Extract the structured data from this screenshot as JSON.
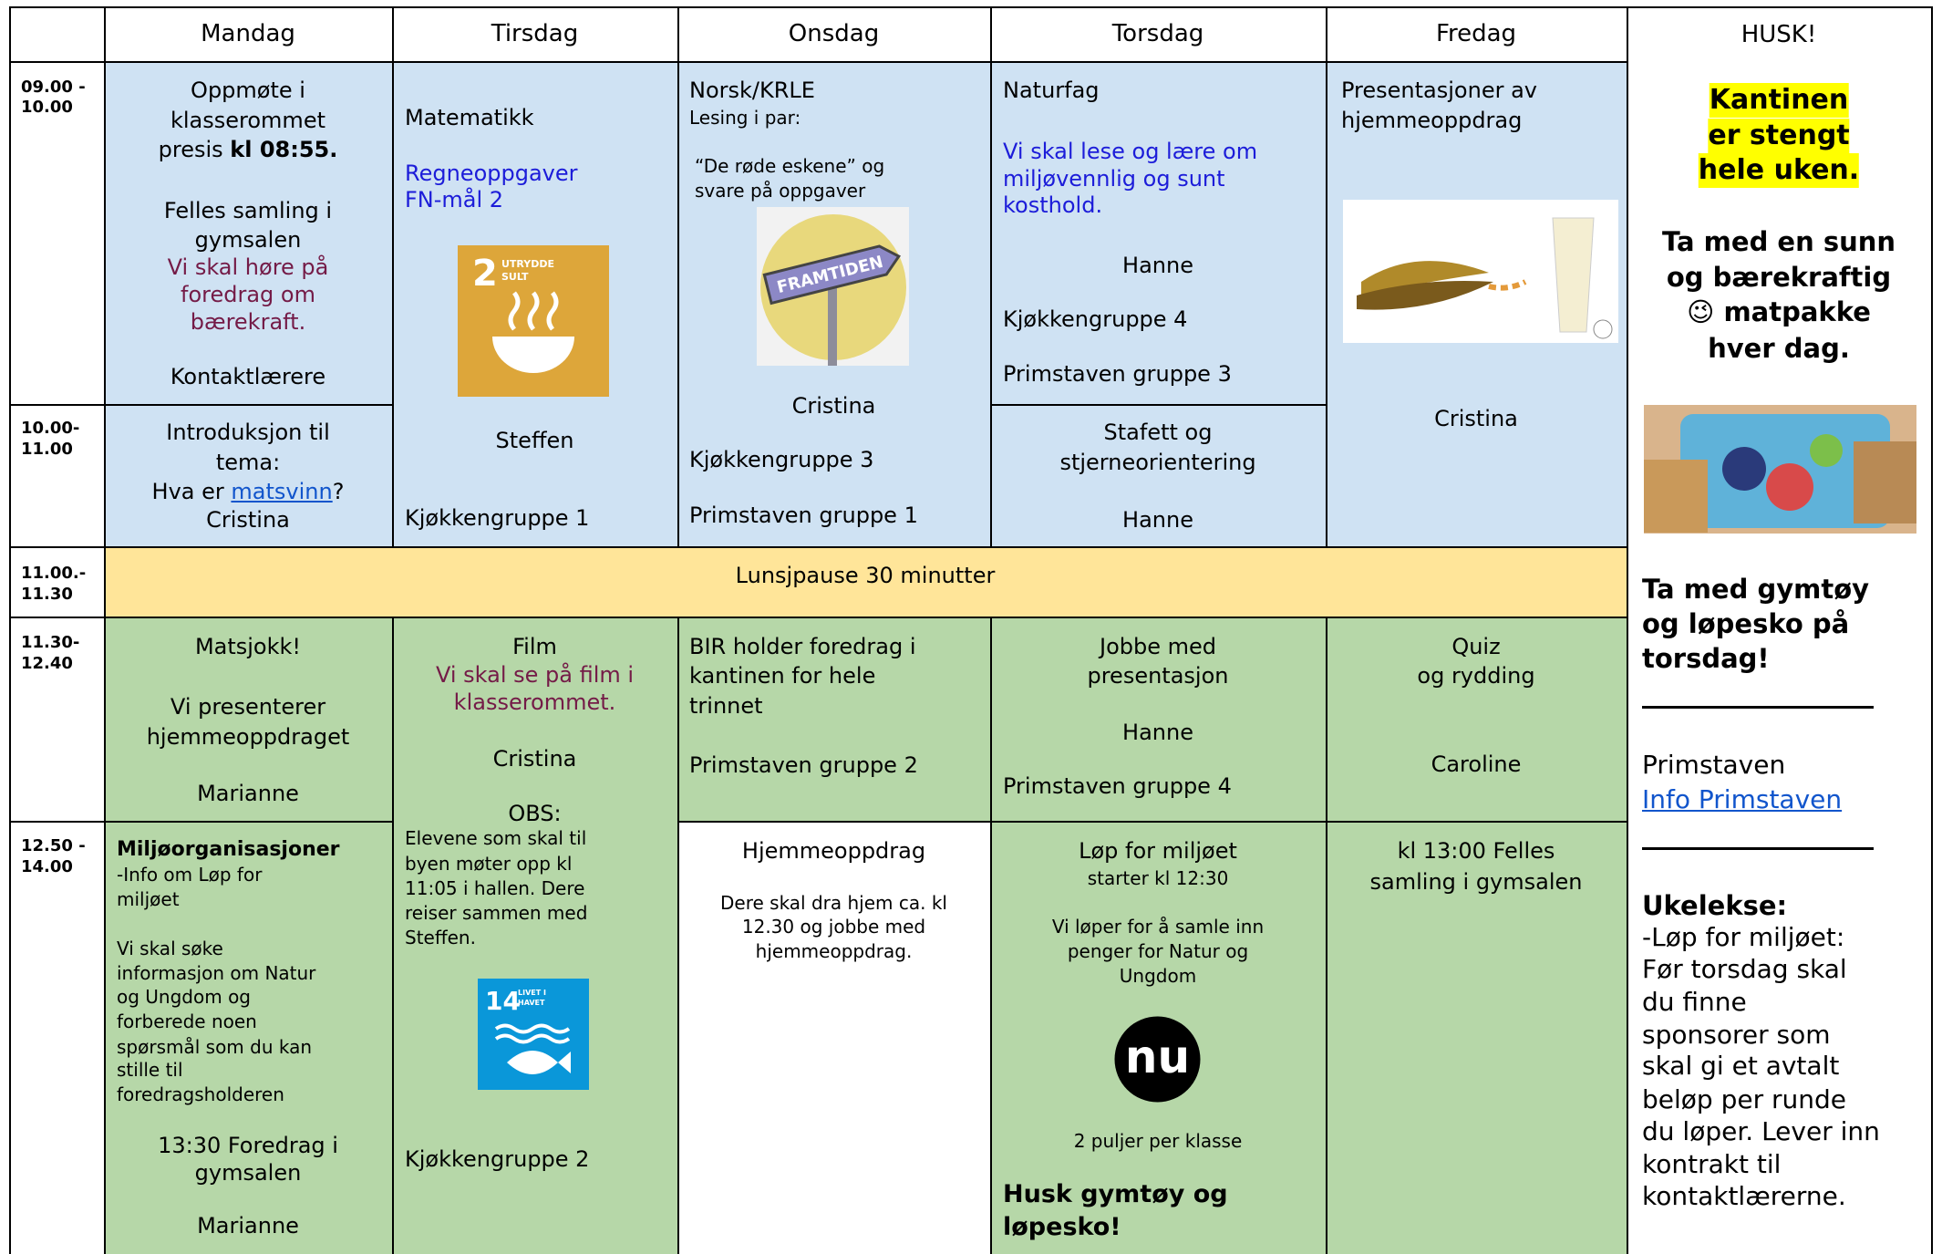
{
  "header": {
    "days": [
      "Mandag",
      "Tirsdag",
      "Onsdag",
      "Torsdag",
      "Fredag"
    ],
    "husk": "HUSK!"
  },
  "times": [
    [
      "09.00 -",
      "10.00"
    ],
    [
      "10.00-",
      "11.00"
    ],
    [
      "11.00.-",
      "11.30"
    ],
    [
      "11.30-",
      "12.40"
    ],
    [
      "12.50 -",
      "14.00"
    ]
  ],
  "mandag": {
    "b1": [
      "Oppmøte i",
      "klasserommet",
      [
        "presis ",
        "kl 08:55."
      ],
      "Felles samling i",
      "gymsalen",
      "Vi skal høre på",
      "foredrag om",
      "bærekraft.",
      "Kontaktlærere"
    ],
    "b2": [
      "Introduksjon til",
      "tema:",
      [
        "Hva er ",
        "matsvinn",
        "?"
      ],
      "Cristina"
    ],
    "b4": [
      "Matsjokk!",
      "Vi presenterer",
      "hjemmeoppdraget",
      "Marianne"
    ],
    "b5": [
      "Miljøorganisasjoner",
      "-Info om Løp for",
      "miljøet",
      "Vi skal søke",
      "informasjon om Natur",
      "og Ungdom og",
      "forberede noen",
      "spørsmål som du kan",
      "stille til",
      "foredragsholderen",
      "13:30 Foredrag i",
      "gymsalen",
      "Marianne"
    ]
  },
  "tirsdag": {
    "b1": [
      "Matematikk",
      "Regneoppgaver",
      "FN-mål 2",
      "Steffen",
      "Kjøkkengruppe 1"
    ],
    "icon1": {
      "number": "2",
      "label": [
        "UTRYDDE",
        "SULT"
      ]
    },
    "b4": [
      "Film",
      "Vi skal se på film i",
      "klasserommet.",
      "Cristina",
      "OBS:",
      "Elevene som skal til",
      "byen møter opp kl",
      "11:05 i hallen. Dere",
      "reiser sammen med",
      "Steffen.",
      "Kjøkkengruppe 2"
    ],
    "icon2": {
      "number": "14",
      "label": [
        "LIVET I",
        "HAVET"
      ]
    }
  },
  "onsdag": {
    "b1": [
      "Norsk/KRLE",
      "Lesing i par:",
      "“De røde eskene” og",
      "svare på oppgaver",
      "Cristina",
      "Kjøkkengruppe 3",
      "Primstaven gruppe 1"
    ],
    "sign": "FRAMTIDEN",
    "b4": [
      "BIR holder foredrag i",
      "kantinen for hele",
      "trinnet",
      "Primstaven gruppe 2"
    ],
    "b5": [
      "Hjemmeoppdrag",
      "Dere skal dra hjem ca. kl",
      "12.30 og jobbe med",
      "hjemmeoppdrag."
    ]
  },
  "torsdag": {
    "b1": [
      "Naturfag",
      "Vi skal lese og lære om",
      "miljøvennlig og sunt",
      "kosthold.",
      "Hanne",
      "Kjøkkengruppe 4",
      "Primstaven gruppe 3"
    ],
    "b2": [
      "Stafett og",
      "stjerneorientering",
      "Hanne"
    ],
    "b4": [
      "Jobbe med",
      "presentasjon",
      "Hanne",
      "Primstaven gruppe 4"
    ],
    "b5": [
      "Løp for miljøet",
      "starter kl 12:30",
      "Vi løper for å samle inn",
      "penger for Natur og",
      "Ungdom",
      "2 puljer per klasse",
      "Husk gymtøy og",
      "løpesko!"
    ],
    "logo": "nu"
  },
  "fredag": {
    "b1": [
      "Presentasjoner av",
      "hjemmeoppdrag",
      "Cristina"
    ],
    "b4": [
      "Quiz",
      "og rydding",
      "Caroline"
    ],
    "b5": [
      "kl 13:00 Felles",
      "samling i gymsalen"
    ]
  },
  "lunch": "Lunsjpause 30 minutter",
  "husk": {
    "notice": [
      "Kantinen",
      "er stengt",
      "hele uken."
    ],
    "lunchbox": [
      "Ta med en sunn",
      "og bærekraftig",
      "😉 matpakke",
      "hver dag."
    ],
    "gym": [
      "Ta med gymtøy",
      "og løpesko på",
      "torsdag!"
    ],
    "primstaven": "Primstaven",
    "link": "Info Primstaven",
    "homework_title": "Ukelekse:",
    "homework": [
      "-Løp for miljøet:",
      "Før torsdag skal",
      "du finne",
      "sponsorer som",
      "skal gi et avtalt",
      "beløp per runde",
      "du løper. Lever inn",
      "kontrakt til",
      "kontaktlærerne."
    ]
  }
}
